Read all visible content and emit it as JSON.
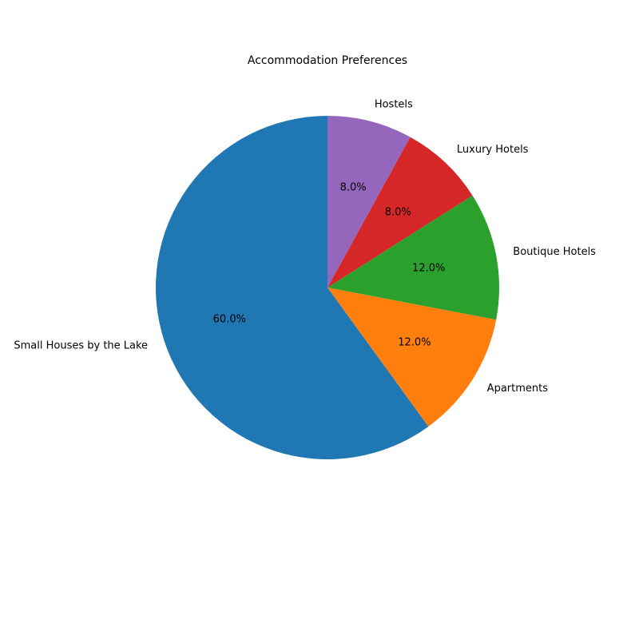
{
  "chart_data": {
    "type": "pie",
    "title": "Accommodation Preferences",
    "start_angle_deg": 90,
    "direction": "counterclockwise",
    "slices": [
      {
        "label": "Small Houses by the Lake",
        "value": 60.0,
        "pct_label": "60.0%",
        "color": "#1f77b4"
      },
      {
        "label": "Apartments",
        "value": 12.0,
        "pct_label": "12.0%",
        "color": "#ff7f0e"
      },
      {
        "label": "Boutique Hotels",
        "value": 12.0,
        "pct_label": "12.0%",
        "color": "#2ca02c"
      },
      {
        "label": "Luxury Hotels",
        "value": 8.0,
        "pct_label": "8.0%",
        "color": "#d62728"
      },
      {
        "label": "Hostels",
        "value": 8.0,
        "pct_label": "8.0%",
        "color": "#9467bd"
      }
    ]
  }
}
